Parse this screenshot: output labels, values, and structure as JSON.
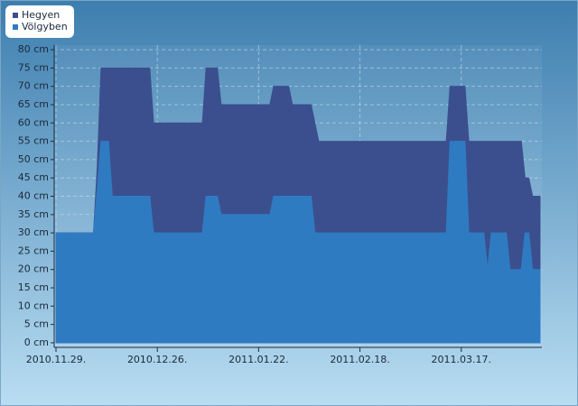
{
  "chart_data": {
    "type": "area",
    "x": [
      "2010-11-29",
      "2010-12-09",
      "2010-12-10",
      "2010-12-11",
      "2010-12-13",
      "2010-12-14",
      "2010-12-24",
      "2010-12-25",
      "2011-01-07",
      "2011-01-08",
      "2011-01-11",
      "2011-01-12",
      "2011-01-25",
      "2011-01-26",
      "2011-01-30",
      "2011-01-31",
      "2011-02-05",
      "2011-02-06",
      "2011-02-07",
      "2011-03-13",
      "2011-03-14",
      "2011-03-18",
      "2011-03-19",
      "2011-03-23",
      "2011-03-24",
      "2011-03-25",
      "2011-03-29",
      "2011-03-30",
      "2011-04-02",
      "2011-04-03",
      "2011-04-04",
      "2011-04-05",
      "2011-04-07"
    ],
    "series": [
      {
        "name": "Hegyen",
        "color": "#3b4f8e",
        "values": [
          30,
          30,
          48,
          75,
          75,
          75,
          75,
          60,
          60,
          75,
          75,
          65,
          65,
          70,
          70,
          65,
          65,
          60,
          55,
          55,
          70,
          70,
          55,
          55,
          55,
          55,
          55,
          55,
          55,
          45,
          45,
          40,
          40
        ]
      },
      {
        "name": "Völgyben",
        "color": "#2f7bc2",
        "values": [
          30,
          30,
          42,
          55,
          55,
          40,
          40,
          30,
          30,
          40,
          40,
          35,
          35,
          40,
          40,
          40,
          40,
          30,
          30,
          30,
          55,
          55,
          30,
          30,
          20,
          30,
          30,
          20,
          20,
          30,
          30,
          20,
          20
        ]
      }
    ],
    "xlim": [
      "2010-11-29",
      "2011-04-07"
    ],
    "xticks": [
      {
        "value": "2010-11-29",
        "label": "2010.11.29."
      },
      {
        "value": "2010-12-26",
        "label": "2010.12.26."
      },
      {
        "value": "2011-01-22",
        "label": "2011.01.22."
      },
      {
        "value": "2011-02-18",
        "label": "2011.02.18."
      },
      {
        "value": "2011-03-17",
        "label": "2011.03.17."
      }
    ],
    "ylim": [
      -1.25,
      81.25
    ],
    "yticks": [
      {
        "value": 0,
        "label": "0 cm"
      },
      {
        "value": 5,
        "label": "5 cm"
      },
      {
        "value": 10,
        "label": "10 cm"
      },
      {
        "value": 15,
        "label": "15 cm"
      },
      {
        "value": 20,
        "label": "20 cm"
      },
      {
        "value": 25,
        "label": "25 cm"
      },
      {
        "value": 30,
        "label": "30 cm"
      },
      {
        "value": 35,
        "label": "35 cm"
      },
      {
        "value": 40,
        "label": "40 cm"
      },
      {
        "value": 45,
        "label": "45 cm"
      },
      {
        "value": 50,
        "label": "50 cm"
      },
      {
        "value": 55,
        "label": "55 cm"
      },
      {
        "value": 60,
        "label": "60 cm"
      },
      {
        "value": 65,
        "label": "65 cm"
      },
      {
        "value": 70,
        "label": "70 cm"
      },
      {
        "value": 75,
        "label": "75 cm"
      },
      {
        "value": 80,
        "label": "80 cm"
      }
    ],
    "grid": true,
    "legend": "top-left"
  }
}
